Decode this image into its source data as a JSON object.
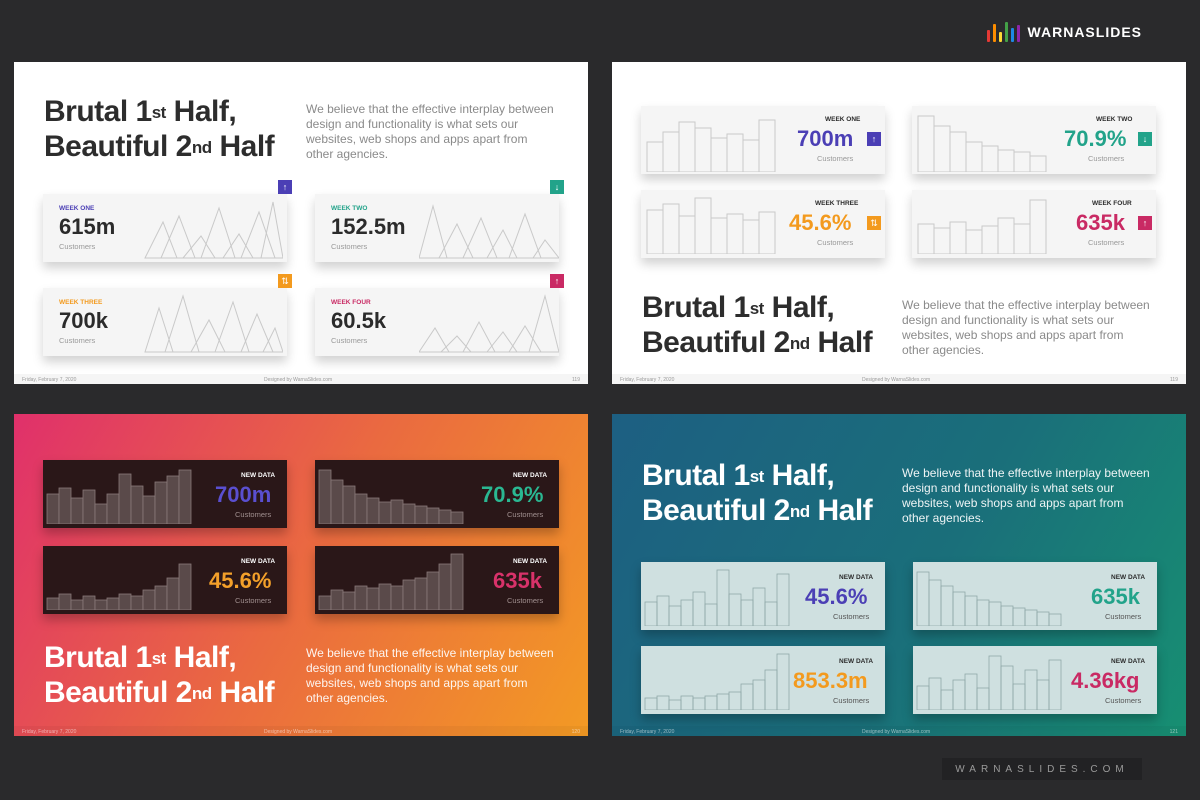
{
  "brand": {
    "name": "WARNASLIDES",
    "footer": "WARNASLIDES.COM",
    "bar_colors": [
      "#e53935",
      "#fb8c00",
      "#fdd835",
      "#43a047",
      "#1e88e5",
      "#8e24aa"
    ]
  },
  "colors": {
    "purple": "#4b3fb5",
    "teal": "#22a38a",
    "orange": "#f39a1e",
    "magenta": "#c92a64"
  },
  "slides": [
    {
      "title_a": "Brutal 1",
      "sup_a": "st",
      "title_a2": " Half,",
      "title_b": "Beautiful 2",
      "sup_b": "nd",
      "title_b2": " Half",
      "description": "We believe that the effective interplay between design and functionality is what sets our websites, web shops and apps apart from other agencies.",
      "footer_date": "Friday, February 7, 2020",
      "footer_credit": "Designed by WarnaSlides.com",
      "page": "119",
      "cards": [
        {
          "label": "WEEK ONE",
          "value": "615m",
          "sub": "Customers",
          "icon": "arrow-up-icon"
        },
        {
          "label": "WEEK TWO",
          "value": "152.5m",
          "sub": "Customers",
          "icon": "arrow-down-icon"
        },
        {
          "label": "WEEK THREE",
          "value": "700k",
          "sub": "Customers",
          "icon": "swap-icon"
        },
        {
          "label": "WEEK FOUR",
          "value": "60.5k",
          "sub": "Customers",
          "icon": "arrow-up-icon"
        }
      ]
    },
    {
      "title_a": "Brutal 1",
      "sup_a": "st",
      "title_a2": " Half,",
      "title_b": "Beautiful 2",
      "sup_b": "nd",
      "title_b2": " Half",
      "description": "We believe that the effective interplay between design and functionality is what sets our websites, web shops and apps apart from other agencies.",
      "footer_date": "Friday, February 7, 2020",
      "footer_credit": "Designed by WarnaSlides.com",
      "page": "119",
      "cards": [
        {
          "label": "WEEK ONE",
          "value": "700m",
          "sub": "Customers",
          "icon": "arrow-up-icon"
        },
        {
          "label": "WEEK TWO",
          "value": "70.9%",
          "sub": "Customers",
          "icon": "arrow-down-icon"
        },
        {
          "label": "WEEK THREE",
          "value": "45.6%",
          "sub": "Customers",
          "icon": "swap-icon"
        },
        {
          "label": "WEEK FOUR",
          "value": "635k",
          "sub": "Customers",
          "icon": "arrow-up-icon"
        }
      ]
    },
    {
      "title_a": "Brutal 1",
      "sup_a": "st",
      "title_a2": " Half,",
      "title_b": "Beautiful 2",
      "sup_b": "nd",
      "title_b2": " Half",
      "description": "We believe that the effective interplay between design and functionality is what sets our websites, web shops and apps apart from other agencies.",
      "footer_date": "Friday, February 7, 2020",
      "footer_credit": "Designed by WarnaSlides.com",
      "page": "120",
      "cards": [
        {
          "label": "NEW DATA",
          "value": "700m",
          "sub": "Customers"
        },
        {
          "label": "NEW DATA",
          "value": "70.9%",
          "sub": "Customers"
        },
        {
          "label": "NEW DATA",
          "value": "45.6%",
          "sub": "Customers"
        },
        {
          "label": "NEW DATA",
          "value": "635k",
          "sub": "Customers"
        }
      ]
    },
    {
      "title_a": "Brutal 1",
      "sup_a": "st",
      "title_a2": " Half,",
      "title_b": "Beautiful 2",
      "sup_b": "nd",
      "title_b2": " Half",
      "description": "We believe that the effective interplay between design and functionality is what sets our websites, web shops and apps apart from other agencies.",
      "footer_date": "Friday, February 7, 2020",
      "footer_credit": "Designed by WarnaSlides.com",
      "page": "121",
      "cards": [
        {
          "label": "NEW DATA",
          "value": "45.6%",
          "sub": "Customers"
        },
        {
          "label": "NEW DATA",
          "value": "635k",
          "sub": "Customers"
        },
        {
          "label": "NEW DATA",
          "value": "853.3m",
          "sub": "Customers"
        },
        {
          "label": "NEW DATA",
          "value": "4.36kg",
          "sub": "Customers"
        }
      ]
    }
  ]
}
